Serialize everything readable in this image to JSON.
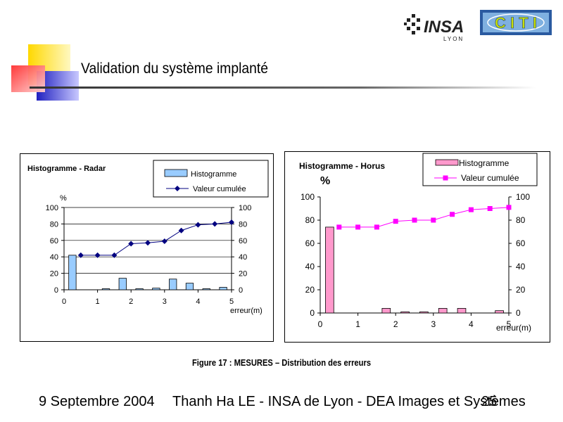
{
  "slide": {
    "title": "Validation du système implanté",
    "caption": "Figure 17 : MESURES – Distribution des erreurs",
    "footer": {
      "date": "9 Septembre 2004",
      "author": "Thanh Ha LE - INSA de Lyon -  DEA Images et Systèmes",
      "page": "25"
    },
    "logos": {
      "insa_text": "INSA",
      "insa_sub": "LYON",
      "citi_text": "C I T I"
    }
  },
  "colors": {
    "radar_bar": "#99ccff",
    "radar_line": "#000080",
    "horus_bar": "#ff99cc",
    "horus_line": "#ff00ff"
  },
  "chart_data": [
    {
      "type": "bar",
      "title": "Histogramme - Radar",
      "ylabel": "%",
      "xlabel": "erreur(m)",
      "xlim": [
        0,
        5
      ],
      "ylim": [
        0,
        100
      ],
      "x_ticks": [
        "0",
        "1",
        "2",
        "3",
        "4",
        "5"
      ],
      "y_ticks": [
        "0",
        "20",
        "40",
        "60",
        "80",
        "100"
      ],
      "y2_ticks": [
        "0",
        "20",
        "40",
        "60",
        "80",
        "100"
      ],
      "grid": true,
      "legend": "top-right",
      "series": [
        {
          "name": "Histogramme",
          "type": "bar",
          "x": [
            0.25,
            0.75,
            1.25,
            1.75,
            2.25,
            2.75,
            3.25,
            3.75,
            4.25,
            4.75
          ],
          "values": [
            42,
            0,
            1,
            14,
            1,
            2,
            13,
            8,
            1,
            3
          ]
        },
        {
          "name": "Valeur cumulée",
          "type": "line",
          "x": [
            0.5,
            1.0,
            1.5,
            2.0,
            2.5,
            3.0,
            3.5,
            4.0,
            4.5,
            5.0
          ],
          "values": [
            42,
            42,
            42,
            56,
            57,
            59,
            72,
            79,
            80,
            82
          ]
        }
      ]
    },
    {
      "type": "bar",
      "title": "Histogramme - Horus",
      "ylabel": "%",
      "xlabel": "erreur(m)",
      "xlim": [
        0,
        5
      ],
      "ylim": [
        0,
        100
      ],
      "x_ticks": [
        "0",
        "1",
        "2",
        "3",
        "4",
        "5"
      ],
      "y_ticks": [
        "0",
        "20",
        "40",
        "60",
        "80",
        "100"
      ],
      "y2_ticks": [
        "0",
        "20",
        "40",
        "60",
        "80",
        "100"
      ],
      "grid": false,
      "legend": "top-right",
      "series": [
        {
          "name": "Histogramme",
          "type": "bar",
          "x": [
            0.25,
            0.75,
            1.25,
            1.75,
            2.25,
            2.75,
            3.25,
            3.75,
            4.25,
            4.75
          ],
          "values": [
            74,
            0,
            0,
            4,
            1,
            1,
            4,
            4,
            0,
            2
          ]
        },
        {
          "name": "Valeur cumulée",
          "type": "line",
          "x": [
            0.5,
            1.0,
            1.5,
            2.0,
            2.5,
            3.0,
            3.5,
            4.0,
            4.5,
            5.0
          ],
          "values": [
            74,
            74,
            74,
            79,
            80,
            80,
            85,
            89,
            90,
            91
          ]
        }
      ]
    }
  ]
}
